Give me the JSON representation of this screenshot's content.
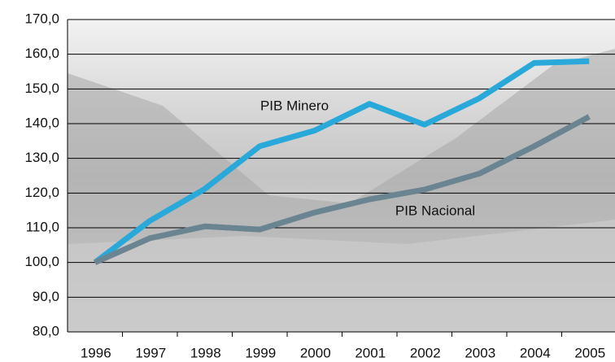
{
  "chart_data": {
    "type": "line",
    "categories": [
      "1996",
      "1997",
      "1998",
      "1999",
      "2000",
      "2001",
      "2002",
      "2003",
      "2004",
      "2005"
    ],
    "series": [
      {
        "name": "PIB Minero",
        "color": "#29a9d9",
        "values": [
          100,
          112,
          121.2,
          133.5,
          138,
          145.7,
          139.7,
          147.3,
          157.5,
          158
        ]
      },
      {
        "name": "PIB Nacional",
        "color": "#6a8591",
        "values": [
          100,
          107,
          110.4,
          109.5,
          114.4,
          118.2,
          121,
          125.6,
          133.5,
          142
        ]
      }
    ],
    "ylim": [
      80,
      170
    ],
    "yticks": [
      {
        "value": 80,
        "label": "80,0"
      },
      {
        "value": 90,
        "label": "90,0"
      },
      {
        "value": 100,
        "label": "100,0"
      },
      {
        "value": 110,
        "label": "110,0"
      },
      {
        "value": 120,
        "label": "120,0"
      },
      {
        "value": 130,
        "label": "130,0"
      },
      {
        "value": 140,
        "label": "140,0"
      },
      {
        "value": 150,
        "label": "150,0"
      },
      {
        "value": 160,
        "label": "160,0"
      },
      {
        "value": 170,
        "label": "170,0"
      }
    ],
    "grid": true
  }
}
